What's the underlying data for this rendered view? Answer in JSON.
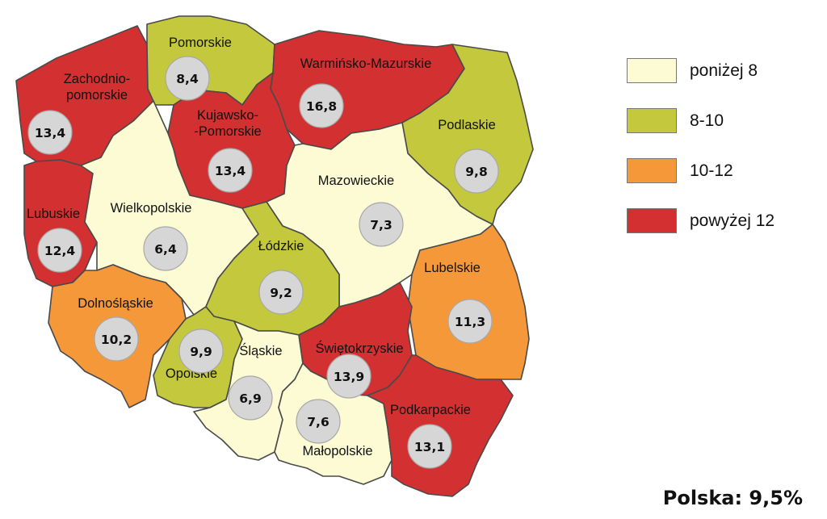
{
  "colors": {
    "below_8": "#fdfbd4",
    "8_10": "#c3c83c",
    "10_12": "#f5983a",
    "above_12": "#d33031"
  },
  "legend": [
    {
      "label": "poniżej 8",
      "color": "#fdfbd4"
    },
    {
      "label": "8-10",
      "color": "#c3c83c"
    },
    {
      "label": "10-12",
      "color": "#f5983a"
    },
    {
      "label": "powyżej 12",
      "color": "#d33031"
    }
  ],
  "regions": [
    {
      "id": "zachodniopomorskie",
      "name": "Zachodnio-\npomorskie",
      "value": "13,4",
      "color": "#d33031"
    },
    {
      "id": "pomorskie",
      "name": "Pomorskie",
      "value": "8,4",
      "color": "#c3c83c"
    },
    {
      "id": "warminsko-mazurskie",
      "name": "Warmińsko-Mazurskie",
      "value": "16,8",
      "color": "#d33031"
    },
    {
      "id": "podlaskie",
      "name": "Podlaskie",
      "value": "9,8",
      "color": "#c3c83c"
    },
    {
      "id": "kujawsko-pomorskie",
      "name": "Kujawsko-\n-Pomorskie",
      "value": "13,4",
      "color": "#d33031"
    },
    {
      "id": "lubuskie",
      "name": "Lubuskie",
      "value": "12,4",
      "color": "#d33031"
    },
    {
      "id": "wielkopolskie",
      "name": "Wielkopolskie",
      "value": "6,4",
      "color": "#fdfbd4"
    },
    {
      "id": "mazowieckie",
      "name": "Mazowieckie",
      "value": "7,3",
      "color": "#fdfbd4"
    },
    {
      "id": "lodzkie",
      "name": "Łódzkie",
      "value": "9,2",
      "color": "#c3c83c"
    },
    {
      "id": "lubelskie",
      "name": "Lubelskie",
      "value": "11,3",
      "color": "#f5983a"
    },
    {
      "id": "dolnoslaskie",
      "name": "Dolnośląskie",
      "value": "10,2",
      "color": "#f5983a"
    },
    {
      "id": "opolskie",
      "name": "Opolskie",
      "value": "9,9",
      "color": "#c3c83c"
    },
    {
      "id": "slaskie",
      "name": "Śląskie",
      "value": "6,9",
      "color": "#fdfbd4"
    },
    {
      "id": "swietokrzyskie",
      "name": "Świętokrzyskie",
      "value": "13,9",
      "color": "#d33031"
    },
    {
      "id": "malopolskie",
      "name": "Małopolskie",
      "value": "7,6",
      "color": "#fdfbd4"
    },
    {
      "id": "podkarpackie",
      "name": "Podkarpackie",
      "value": "13,1",
      "color": "#d33031"
    }
  ],
  "total_label": "Polska: 9,5%"
}
